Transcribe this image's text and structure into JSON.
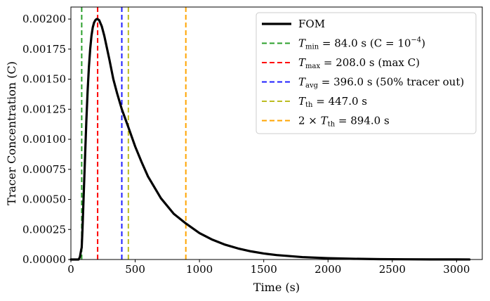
{
  "chart_data": {
    "type": "line",
    "title": "",
    "xlabel": "Time (s)",
    "ylabel": "Tracer Concentration (C)",
    "xlim": [
      0,
      3200
    ],
    "ylim": [
      0,
      0.0021
    ],
    "xticks": [
      0,
      500,
      1000,
      1500,
      2000,
      2500,
      3000
    ],
    "xtick_labels": [
      "0",
      "500",
      "1000",
      "1500",
      "2000",
      "2500",
      "3000"
    ],
    "yticks": [
      0,
      0.00025,
      0.0005,
      0.00075,
      0.001,
      0.00125,
      0.0015,
      0.00175,
      0.002
    ],
    "ytick_labels": [
      "0.00000",
      "0.00025",
      "0.00050",
      "0.00075",
      "0.00100",
      "0.00125",
      "0.00150",
      "0.00175",
      "0.00200"
    ],
    "grid": false,
    "legend_position": "top-right",
    "series": [
      {
        "name": "FOM",
        "color": "#000000",
        "style": "solid",
        "x": [
          0,
          60,
          70,
          80,
          84,
          90,
          100,
          110,
          120,
          130,
          140,
          150,
          160,
          170,
          180,
          190,
          200,
          208,
          220,
          240,
          260,
          280,
          300,
          330,
          360,
          396,
          420,
          447,
          500,
          550,
          600,
          700,
          800,
          894,
          1000,
          1100,
          1200,
          1300,
          1400,
          1500,
          1600,
          1800,
          2000,
          2200,
          2400,
          2600,
          2800,
          3000,
          3100
        ],
        "y": [
          0,
          0,
          2e-05,
          8e-05,
          0.0001,
          0.00025,
          0.00055,
          0.00085,
          0.00115,
          0.0014,
          0.0016,
          0.00175,
          0.00186,
          0.00193,
          0.00197,
          0.00199,
          0.002,
          0.002,
          0.00199,
          0.00194,
          0.00186,
          0.00176,
          0.00166,
          0.0015,
          0.00138,
          0.00125,
          0.00118,
          0.0011,
          0.00094,
          0.00081,
          0.00069,
          0.00051,
          0.00038,
          0.0003,
          0.00022,
          0.000165,
          0.000123,
          9.2e-05,
          6.8e-05,
          5e-05,
          3.7e-05,
          2e-05,
          1.1e-05,
          6e-06,
          3e-06,
          1.7e-06,
          9e-07,
          5e-07,
          3e-07
        ]
      }
    ],
    "vlines": [
      {
        "x": 84.0,
        "color": "#2ca02c",
        "legend": {
          "sym": "T",
          "sub": "min",
          "value": "84.0",
          "note_pre": " s (C = 10",
          "sup": "−4",
          "note_post": ")"
        }
      },
      {
        "x": 208.0,
        "color": "#ff0000",
        "legend": {
          "sym": "T",
          "sub": "max",
          "value": "208.0",
          "note_pre": " s (max C)",
          "sup": "",
          "note_post": ""
        }
      },
      {
        "x": 396.0,
        "color": "#1f1fff",
        "legend": {
          "sym": "T",
          "sub": "avg",
          "value": "396.0",
          "note_pre": " s (50% tracer out)",
          "sup": "",
          "note_post": ""
        }
      },
      {
        "x": 447.0,
        "color": "#bcbd22",
        "legend": {
          "sym": "T",
          "sub": "th",
          "value": "447.0",
          "note_pre": " s",
          "sup": "",
          "note_post": ""
        }
      },
      {
        "x": 894.0,
        "color": "#ffa500",
        "legend": {
          "prefix": "2 × ",
          "sym": "T",
          "sub": "th",
          "value": "894.0",
          "note_pre": " s",
          "sup": "",
          "note_post": ""
        }
      }
    ]
  }
}
